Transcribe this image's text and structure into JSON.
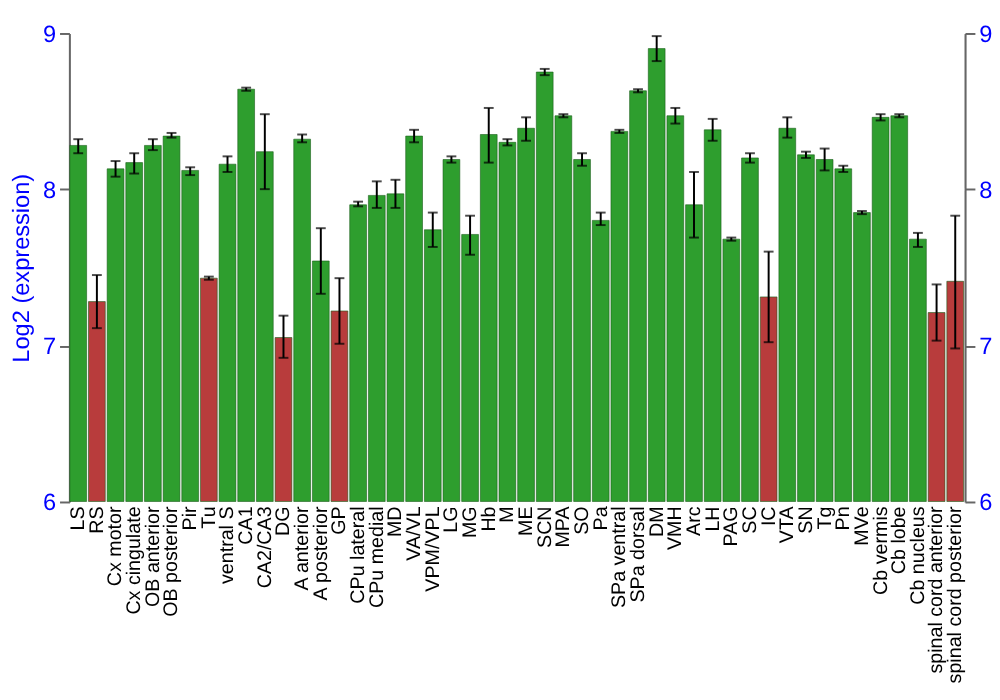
{
  "chart_data": {
    "type": "bar",
    "ylabel": "Log2 (expression)",
    "categories": [
      "LS",
      "RS",
      "Cx motor",
      "Cx cingulate",
      "OB anterior",
      "OB posterior",
      "Pir",
      "Tu",
      "ventral S",
      "CA1",
      "CA2/CA3",
      "DG",
      "A anterior",
      "A posterior",
      "GP",
      "CPu lateral",
      "CPu medial",
      "MD",
      "VA/VL",
      "VPM/VPL",
      "LG",
      "MG",
      "Hb",
      "M",
      "ME",
      "SCN",
      "MPA",
      "SO",
      "Pa",
      "SPa ventral",
      "SPa dorsal",
      "DM",
      "VMH",
      "Arc",
      "LH",
      "PAG",
      "SC",
      "IC",
      "VTA",
      "SN",
      "Tg",
      "Pn",
      "MVe",
      "Cb vermis",
      "Cb lobe",
      "Cb nucleus",
      "spinal cord anterior",
      "spinal cord posterior"
    ],
    "values": [
      8.28,
      7.28,
      8.13,
      8.17,
      8.28,
      8.34,
      8.12,
      7.43,
      8.16,
      8.64,
      8.24,
      7.05,
      8.32,
      7.54,
      7.22,
      7.9,
      7.96,
      7.97,
      8.34,
      7.74,
      8.19,
      7.71,
      8.35,
      8.3,
      8.39,
      8.75,
      8.47,
      8.19,
      7.8,
      8.37,
      8.63,
      8.9,
      8.47,
      7.9,
      8.38,
      7.68,
      8.2,
      7.31,
      8.39,
      8.22,
      8.19,
      8.13,
      7.85,
      8.46,
      8.47,
      7.68,
      7.21,
      7.41
    ],
    "errors": [
      [
        8.23,
        8.32
      ],
      [
        7.11,
        7.45
      ],
      [
        8.08,
        8.18
      ],
      [
        8.1,
        8.23
      ],
      [
        8.25,
        8.32
      ],
      [
        8.33,
        8.36
      ],
      [
        8.09,
        8.14
      ],
      [
        7.42,
        7.44
      ],
      [
        8.11,
        8.21
      ],
      [
        8.63,
        8.65
      ],
      [
        8.0,
        8.48
      ],
      [
        6.92,
        7.19
      ],
      [
        8.3,
        8.35
      ],
      [
        7.33,
        7.75
      ],
      [
        7.01,
        7.43
      ],
      [
        7.89,
        7.92
      ],
      [
        7.88,
        8.05
      ],
      [
        7.88,
        8.06
      ],
      [
        8.3,
        8.38
      ],
      [
        7.63,
        7.85
      ],
      [
        8.17,
        8.21
      ],
      [
        7.58,
        7.83
      ],
      [
        8.17,
        8.52
      ],
      [
        8.28,
        8.32
      ],
      [
        8.31,
        8.46
      ],
      [
        8.73,
        8.77
      ],
      [
        8.46,
        8.48
      ],
      [
        8.15,
        8.23
      ],
      [
        7.77,
        7.85
      ],
      [
        8.36,
        8.38
      ],
      [
        8.62,
        8.64
      ],
      [
        8.82,
        8.98
      ],
      [
        8.42,
        8.52
      ],
      [
        7.69,
        8.11
      ],
      [
        8.31,
        8.45
      ],
      [
        7.67,
        7.69
      ],
      [
        8.17,
        8.23
      ],
      [
        7.02,
        7.6
      ],
      [
        8.33,
        8.46
      ],
      [
        8.2,
        8.24
      ],
      [
        8.12,
        8.26
      ],
      [
        8.11,
        8.15
      ],
      [
        7.84,
        7.86
      ],
      [
        8.44,
        8.48
      ],
      [
        8.46,
        8.48
      ],
      [
        7.63,
        7.72
      ],
      [
        7.03,
        7.39
      ],
      [
        6.98,
        7.83
      ]
    ],
    "colors": [
      "#2e9e2e",
      "#b83c3c",
      "#2e9e2e",
      "#2e9e2e",
      "#2e9e2e",
      "#2e9e2e",
      "#2e9e2e",
      "#b83c3c",
      "#2e9e2e",
      "#2e9e2e",
      "#2e9e2e",
      "#b83c3c",
      "#2e9e2e",
      "#2e9e2e",
      "#b83c3c",
      "#2e9e2e",
      "#2e9e2e",
      "#2e9e2e",
      "#2e9e2e",
      "#2e9e2e",
      "#2e9e2e",
      "#2e9e2e",
      "#2e9e2e",
      "#2e9e2e",
      "#2e9e2e",
      "#2e9e2e",
      "#2e9e2e",
      "#2e9e2e",
      "#2e9e2e",
      "#2e9e2e",
      "#2e9e2e",
      "#2e9e2e",
      "#2e9e2e",
      "#2e9e2e",
      "#2e9e2e",
      "#2e9e2e",
      "#2e9e2e",
      "#b83c3c",
      "#2e9e2e",
      "#2e9e2e",
      "#2e9e2e",
      "#2e9e2e",
      "#2e9e2e",
      "#2e9e2e",
      "#2e9e2e",
      "#2e9e2e",
      "#b83c3c",
      "#b83c3c"
    ],
    "ylim": [
      6,
      9
    ],
    "yticks": [
      6,
      7,
      8,
      9
    ],
    "y2lim": [
      6,
      9
    ],
    "y2ticks": [
      6,
      7,
      8,
      9
    ],
    "grid": "y"
  }
}
